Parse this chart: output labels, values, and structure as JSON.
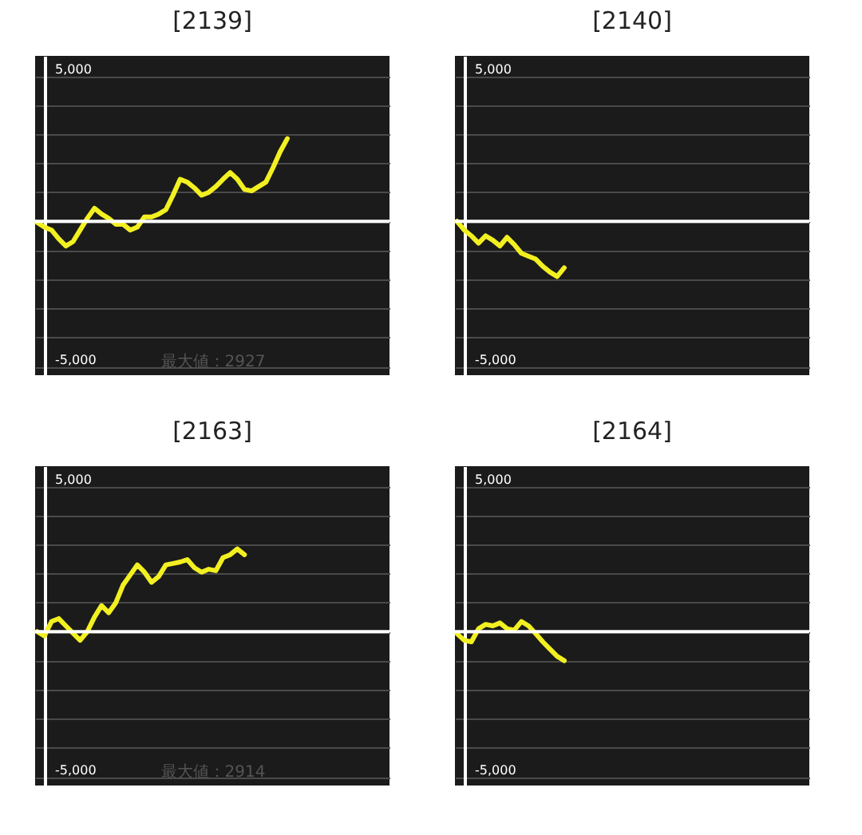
{
  "chart_data": [
    {
      "type": "line",
      "title": "[2139]",
      "annotations": [
        "最大値：2927"
      ],
      "categories": [
        null,
        null,
        null,
        null,
        null,
        null,
        null,
        null,
        null,
        null,
        null,
        null,
        null,
        null,
        null,
        null,
        null,
        null,
        null,
        null,
        null,
        null,
        null,
        null,
        null,
        null,
        null,
        null,
        null,
        null,
        null,
        null,
        null,
        null,
        null,
        null,
        null,
        null,
        null,
        null,
        null,
        null,
        null,
        null,
        null,
        null,
        null,
        null,
        null,
        null
      ],
      "series": [
        {
          "color": "#f2f020",
          "values": [
            -40,
            -200,
            -300,
            -600,
            -850,
            -700,
            -300,
            100,
            450,
            250,
            100,
            -100,
            -100,
            -300,
            -200,
            150,
            150,
            250,
            400,
            900,
            1450,
            1350,
            1150,
            900,
            1000,
            1200,
            1450,
            1680,
            1450,
            1100,
            1050,
            1200,
            1350,
            1850,
            2400,
            2850,
            null,
            null,
            null,
            null,
            null,
            null,
            null,
            null,
            null,
            null,
            null,
            null,
            null,
            null
          ]
        }
      ],
      "ylim": [
        -5300,
        5700
      ],
      "yticks": [
        {
          "value": -5000,
          "label": "-5,000"
        },
        {
          "value": -4000,
          "label": null
        },
        {
          "value": -3000,
          "label": null
        },
        {
          "value": -2000,
          "label": null
        },
        {
          "value": -1000,
          "label": null
        },
        {
          "value": 0,
          "label": null
        },
        {
          "value": 1000,
          "label": null
        },
        {
          "value": 2000,
          "label": null
        },
        {
          "value": 3000,
          "label": null
        },
        {
          "value": 4000,
          "label": null
        },
        {
          "value": 5000,
          "label": "5,000"
        }
      ],
      "ref_lines": [
        {
          "axis": "y",
          "value": 0,
          "color": "#ffffff"
        }
      ],
      "grid": "y",
      "tick_labels": "y",
      "marker": "none",
      "line_style": "solid"
    },
    {
      "type": "line",
      "title": "[2140]",
      "categories": [
        null,
        null,
        null,
        null,
        null,
        null,
        null,
        null,
        null,
        null,
        null,
        null,
        null,
        null,
        null,
        null,
        null,
        null,
        null,
        null,
        null,
        null,
        null,
        null,
        null,
        null,
        null,
        null,
        null,
        null,
        null,
        null,
        null,
        null,
        null,
        null,
        null,
        null,
        null,
        null,
        null,
        null,
        null,
        null,
        null,
        null,
        null,
        null,
        null,
        null
      ],
      "series": [
        {
          "color": "#f2f020",
          "values": [
            0,
            -300,
            -500,
            -750,
            -500,
            -650,
            -850,
            -550,
            -800,
            -1100,
            -1200,
            -1300,
            -1550,
            -1750,
            -1900,
            -1600,
            null,
            null,
            null,
            null,
            null,
            null,
            null,
            null,
            null,
            null,
            null,
            null,
            null,
            null,
            null,
            null,
            null,
            null,
            null,
            null,
            null,
            null,
            null,
            null,
            null,
            null,
            null,
            null,
            null,
            null,
            null,
            null,
            null,
            null
          ]
        }
      ],
      "ylim": [
        -5300,
        5700
      ],
      "yticks": [
        {
          "value": -5000,
          "label": "-5,000"
        },
        {
          "value": -4000,
          "label": null
        },
        {
          "value": -3000,
          "label": null
        },
        {
          "value": -2000,
          "label": null
        },
        {
          "value": -1000,
          "label": null
        },
        {
          "value": 0,
          "label": null
        },
        {
          "value": 1000,
          "label": null
        },
        {
          "value": 2000,
          "label": null
        },
        {
          "value": 3000,
          "label": null
        },
        {
          "value": 4000,
          "label": null
        },
        {
          "value": 5000,
          "label": "5,000"
        }
      ],
      "ref_lines": [
        {
          "axis": "y",
          "value": 0,
          "color": "#ffffff"
        }
      ],
      "grid": "y",
      "tick_labels": "y",
      "marker": "none",
      "line_style": "solid"
    },
    {
      "type": "line",
      "title": "[2163]",
      "annotations": [
        "最大値：2914"
      ],
      "categories": [
        null,
        null,
        null,
        null,
        null,
        null,
        null,
        null,
        null,
        null,
        null,
        null,
        null,
        null,
        null,
        null,
        null,
        null,
        null,
        null,
        null,
        null,
        null,
        null,
        null,
        null,
        null,
        null,
        null,
        null,
        null,
        null,
        null,
        null,
        null,
        null,
        null,
        null,
        null,
        null,
        null,
        null,
        null,
        null,
        null,
        null,
        null,
        null,
        null,
        null
      ],
      "series": [
        {
          "color": "#f2f020",
          "values": [
            0,
            -150,
            350,
            450,
            200,
            -50,
            -300,
            0,
            500,
            900,
            650,
            1000,
            1600,
            1950,
            2300,
            2050,
            1700,
            1900,
            2300,
            2350,
            2400,
            2480,
            2200,
            2050,
            2150,
            2100,
            2550,
            2650,
            2850,
            2650,
            null,
            null,
            null,
            null,
            null,
            null,
            null,
            null,
            null,
            null,
            null,
            null,
            null,
            null,
            null,
            null,
            null,
            null,
            null,
            null
          ]
        }
      ],
      "ylim": [
        -5300,
        5700
      ],
      "yticks": [
        {
          "value": -5000,
          "label": "-5,000"
        },
        {
          "value": -4000,
          "label": null
        },
        {
          "value": -3000,
          "label": null
        },
        {
          "value": -2000,
          "label": null
        },
        {
          "value": -1000,
          "label": null
        },
        {
          "value": 0,
          "label": null
        },
        {
          "value": 1000,
          "label": null
        },
        {
          "value": 2000,
          "label": null
        },
        {
          "value": 3000,
          "label": null
        },
        {
          "value": 4000,
          "label": null
        },
        {
          "value": 5000,
          "label": "5,000"
        }
      ],
      "ref_lines": [
        {
          "axis": "y",
          "value": 0,
          "color": "#ffffff"
        }
      ],
      "grid": "y",
      "tick_labels": "y",
      "marker": "none",
      "line_style": "solid"
    },
    {
      "type": "line",
      "title": "[2164]",
      "categories": [
        null,
        null,
        null,
        null,
        null,
        null,
        null,
        null,
        null,
        null,
        null,
        null,
        null,
        null,
        null,
        null,
        null,
        null,
        null,
        null,
        null,
        null,
        null,
        null,
        null,
        null,
        null,
        null,
        null,
        null,
        null,
        null,
        null,
        null,
        null,
        null,
        null,
        null,
        null,
        null,
        null,
        null,
        null,
        null,
        null,
        null,
        null,
        null,
        null,
        null
      ],
      "series": [
        {
          "color": "#f2f020",
          "values": [
            -70,
            -300,
            -350,
            100,
            250,
            200,
            300,
            100,
            50,
            350,
            200,
            -70,
            -350,
            -600,
            -850,
            -1000,
            null,
            null,
            null,
            null,
            null,
            null,
            null,
            null,
            null,
            null,
            null,
            null,
            null,
            null,
            null,
            null,
            null,
            null,
            null,
            null,
            null,
            null,
            null,
            null,
            null,
            null,
            null,
            null,
            null,
            null,
            null,
            null,
            null,
            null
          ]
        }
      ],
      "ylim": [
        -5300,
        5700
      ],
      "yticks": [
        {
          "value": -5000,
          "label": "-5,000"
        },
        {
          "value": -4000,
          "label": null
        },
        {
          "value": -3000,
          "label": null
        },
        {
          "value": -2000,
          "label": null
        },
        {
          "value": -1000,
          "label": null
        },
        {
          "value": 0,
          "label": null
        },
        {
          "value": 1000,
          "label": null
        },
        {
          "value": 2000,
          "label": null
        },
        {
          "value": 3000,
          "label": null
        },
        {
          "value": 4000,
          "label": null
        },
        {
          "value": 5000,
          "label": "5,000"
        }
      ],
      "ref_lines": [
        {
          "axis": "y",
          "value": 0,
          "color": "#ffffff"
        }
      ],
      "grid": "y",
      "tick_labels": "y",
      "marker": "none",
      "line_style": "solid"
    }
  ]
}
